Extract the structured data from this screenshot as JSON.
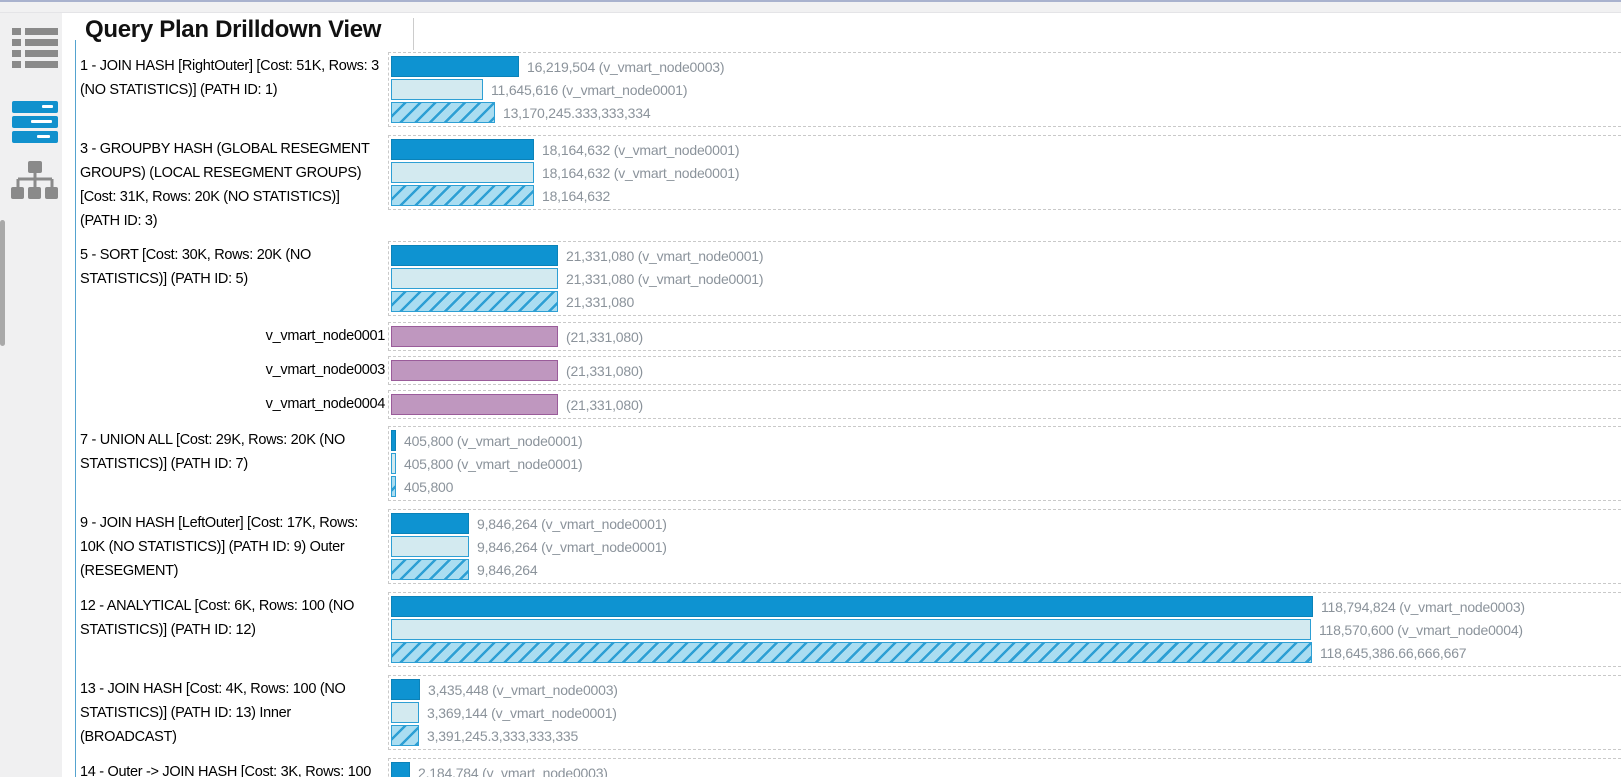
{
  "header": {
    "title": "Query Plan Drilldown View"
  },
  "sidebar": {
    "icons": [
      {
        "name": "list-view-icon",
        "active": false
      },
      {
        "name": "drilldown-view-icon",
        "active": true
      },
      {
        "name": "plan-tree-icon",
        "active": false
      }
    ]
  },
  "colors": {
    "accent_blue": "#0e93d1",
    "pale_blue": "#d3eaf0",
    "hatch_light_blue": "#aaddf1",
    "hatch_stripe_blue": "#2d9fd4",
    "bar_purple": "#bf97bf",
    "bar_purple_border": "#9a5c9a",
    "value_text_gray": "#8b939b",
    "dashed_border_gray": "#c9c9c9",
    "sidebar_icon_gray": "#8a8a8a",
    "top_strip": "#f1f1f2",
    "top_strip_border": "#a9b2ce",
    "divider_blue": "#55a3cf"
  },
  "chart_data": {
    "type": "bar",
    "orientation": "horizontal",
    "xmax": 118794824,
    "grid": "dashed row separators",
    "rows": [
      {
        "label": "1 - JOIN HASH [RightOuter] [Cost: 51K, Rows: 3 (NO STATISTICS)] (PATH ID: 1)",
        "bars": [
          {
            "style": "solid",
            "value": 16219504,
            "label": "16,219,504 (v_vmart_node0003)"
          },
          {
            "style": "pale",
            "value": 11645616,
            "label": "11,645,616 (v_vmart_node0001)"
          },
          {
            "style": "hatched",
            "value": 13170245.333333334,
            "label": "13,170,245.333,333,334"
          }
        ]
      },
      {
        "label": "3 - GROUPBY HASH (GLOBAL RESEGMENT GROUPS) (LOCAL RESEGMENT GROUPS) [Cost: 31K, Rows: 20K (NO STATISTICS)] (PATH ID: 3)",
        "bars": [
          {
            "style": "solid",
            "value": 18164632,
            "label": "18,164,632 (v_vmart_node0001)"
          },
          {
            "style": "pale",
            "value": 18164632,
            "label": "18,164,632 (v_vmart_node0001)"
          },
          {
            "style": "hatched",
            "value": 18164632,
            "label": "18,164,632"
          }
        ]
      },
      {
        "label": "5 - SORT [Cost: 30K, Rows: 20K (NO STATISTICS)] (PATH ID: 5)",
        "has_nodes": true,
        "bars": [
          {
            "style": "solid",
            "value": 21331080,
            "label": "21,331,080 (v_vmart_node0001)"
          },
          {
            "style": "pale",
            "value": 21331080,
            "label": "21,331,080 (v_vmart_node0001)"
          },
          {
            "style": "hatched",
            "value": 21331080,
            "label": "21,331,080"
          }
        ]
      },
      {
        "label": "v_vmart_node0001",
        "node": true,
        "bars": [
          {
            "style": "purple",
            "value": 21331080,
            "label": "(21,331,080)"
          }
        ]
      },
      {
        "label": "v_vmart_node0003",
        "node": true,
        "bars": [
          {
            "style": "purple",
            "value": 21331080,
            "label": "(21,331,080)"
          }
        ]
      },
      {
        "label": "v_vmart_node0004",
        "node": true,
        "last_node": true,
        "bars": [
          {
            "style": "purple",
            "value": 21331080,
            "label": "(21,331,080)"
          }
        ]
      },
      {
        "label": "7 - UNION ALL [Cost: 29K, Rows: 20K (NO STATISTICS)] (PATH ID: 7)",
        "bars": [
          {
            "style": "solid",
            "value": 405800,
            "label": "405,800 (v_vmart_node0001)"
          },
          {
            "style": "pale",
            "value": 405800,
            "label": "405,800 (v_vmart_node0001)"
          },
          {
            "style": "hatched",
            "value": 405800,
            "label": "405,800"
          }
        ]
      },
      {
        "label": "9 - JOIN HASH [LeftOuter] [Cost: 17K, Rows: 10K (NO STATISTICS)] (PATH ID: 9) Outer (RESEGMENT)",
        "bars": [
          {
            "style": "solid",
            "value": 9846264,
            "label": "9,846,264 (v_vmart_node0001)"
          },
          {
            "style": "pale",
            "value": 9846264,
            "label": "9,846,264 (v_vmart_node0001)"
          },
          {
            "style": "hatched",
            "value": 9846264,
            "label": "9,846,264"
          }
        ]
      },
      {
        "label": "12 - ANALYTICAL [Cost: 6K, Rows: 100 (NO STATISTICS)] (PATH ID: 12)",
        "bars": [
          {
            "style": "solid",
            "value": 118794824,
            "label": "118,794,824 (v_vmart_node0003)"
          },
          {
            "style": "pale",
            "value": 118570600,
            "label": "118,570,600 (v_vmart_node0004)"
          },
          {
            "style": "hatched",
            "value": 118645386.66666667,
            "label": "118,645,386.66,666,667"
          }
        ]
      },
      {
        "label": "13 - JOIN HASH [Cost: 4K, Rows: 100 (NO STATISTICS)] (PATH ID: 13) Inner (BROADCAST)",
        "bars": [
          {
            "style": "solid",
            "value": 3435448,
            "label": "3,435,448 (v_vmart_node0003)"
          },
          {
            "style": "pale",
            "value": 3369144,
            "label": "3,369,144 (v_vmart_node0001)"
          },
          {
            "style": "hatched",
            "value": 3391245.3333333335,
            "label": "3,391,245.3,333,333,335"
          }
        ]
      },
      {
        "label": "14 - Outer -> JOIN HASH [Cost: 3K, Rows: 100",
        "bars": [
          {
            "style": "solid",
            "value": 2184784,
            "label": "2,184,784 (v_vmart_node0003)"
          }
        ]
      }
    ]
  }
}
